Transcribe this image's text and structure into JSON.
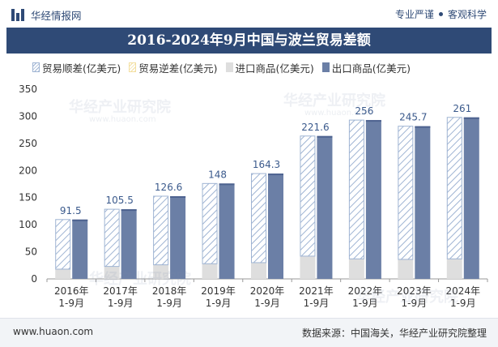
{
  "header": {
    "brand": "华经情报网",
    "tag_left": "专业严谨",
    "tag_right": "客观科学"
  },
  "watermark": {
    "text": "华经产业研究院",
    "url": "www.huaon.com"
  },
  "footer": {
    "url": "www.huaon.com",
    "source": "数据来源：中国海关，华经产业研究院整理"
  },
  "colors": {
    "title_bg": "#2f4a76",
    "export": "#6b7fa6",
    "import": "#dedede",
    "surplus_hatch": "#9fb4d3",
    "deficit_hatch": "#f3dfa0",
    "label": "#3b5a8c"
  },
  "chart_data": {
    "type": "bar",
    "title": "2016-2024年9月中国与波兰贸易差额",
    "categories": [
      "2016年\n1-9月",
      "2017年\n1-9月",
      "2018年\n1-9月",
      "2019年\n1-9月",
      "2020年\n1-9月",
      "2021年\n1-9月",
      "2022年\n1-9月",
      "2023年\n1-9月",
      "2024年\n1-9月"
    ],
    "series": [
      {
        "name": "贸易顺差(亿美元)",
        "values": [
          91.5,
          105.5,
          126.6,
          148,
          164.3,
          221.6,
          256,
          245.7,
          261
        ]
      },
      {
        "name": "贸易逆差(亿美元)",
        "values": [
          0,
          0,
          0,
          0,
          0,
          0,
          0,
          0,
          0
        ]
      },
      {
        "name": "进口商品(亿美元)",
        "values": [
          18,
          23,
          26,
          28,
          30,
          42,
          37,
          36,
          37
        ]
      },
      {
        "name": "出口商品(亿美元)",
        "values": [
          109.5,
          128.5,
          152.6,
          176,
          194.3,
          263.6,
          293,
          281.7,
          298
        ]
      }
    ],
    "yticks": [
      0,
      50,
      100,
      150,
      200,
      250,
      300,
      350
    ],
    "ylim": [
      0,
      350
    ],
    "xlabel": "",
    "ylabel": "",
    "legend_position": "top-left"
  }
}
